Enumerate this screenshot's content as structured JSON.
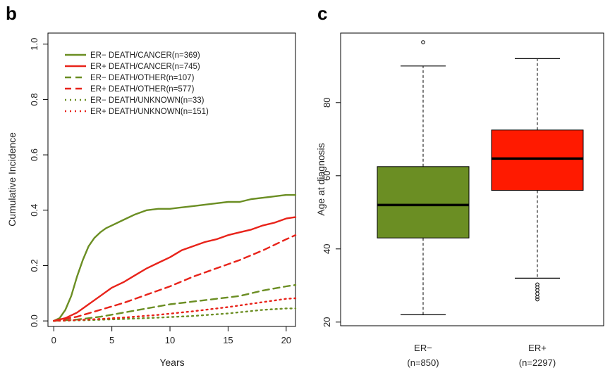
{
  "panels": {
    "left_letter": "b",
    "right_letter": "c"
  },
  "chart_data": [
    {
      "type": "line",
      "title": "",
      "xlabel": "Years",
      "ylabel": "Cumulative Incidence",
      "xlim": [
        -0.5,
        20.8
      ],
      "ylim": [
        -0.02,
        1.04
      ],
      "xticks": [
        "0",
        "5",
        "10",
        "15",
        "20"
      ],
      "yticks": [
        "0.0",
        "0.2",
        "0.4",
        "0.6",
        "0.8",
        "1.0"
      ],
      "legend_position": "top-left",
      "series": [
        {
          "name": "ER− DEATH/CANCER(n=369)",
          "color": "#6b8e23",
          "dash": "solid",
          "x": [
            0,
            0.5,
            1,
            1.5,
            2,
            2.5,
            3,
            3.5,
            4,
            4.5,
            5,
            6,
            7,
            8,
            9,
            10,
            11,
            12,
            13,
            14,
            15,
            16,
            17,
            18,
            19,
            20,
            20.8
          ],
          "y": [
            0,
            0.01,
            0.04,
            0.09,
            0.16,
            0.22,
            0.27,
            0.3,
            0.32,
            0.335,
            0.345,
            0.365,
            0.385,
            0.4,
            0.405,
            0.405,
            0.41,
            0.415,
            0.42,
            0.425,
            0.43,
            0.43,
            0.44,
            0.445,
            0.45,
            0.455,
            0.455
          ]
        },
        {
          "name": "ER+ DEATH/CANCER(n=745)",
          "color": "#e8231a",
          "dash": "solid",
          "x": [
            0,
            1,
            2,
            3,
            4,
            5,
            6,
            7,
            8,
            9,
            10,
            11,
            12,
            13,
            14,
            15,
            16,
            17,
            18,
            19,
            20,
            20.8
          ],
          "y": [
            0,
            0.01,
            0.03,
            0.06,
            0.09,
            0.12,
            0.14,
            0.165,
            0.19,
            0.21,
            0.23,
            0.255,
            0.27,
            0.285,
            0.295,
            0.31,
            0.32,
            0.33,
            0.345,
            0.355,
            0.37,
            0.375
          ]
        },
        {
          "name": "ER− DEATH/OTHER(n=107)",
          "color": "#6b8e23",
          "dash": "dashed",
          "x": [
            0,
            2,
            4,
            6,
            8,
            10,
            12,
            14,
            16,
            18,
            20,
            20.8
          ],
          "y": [
            0,
            0.005,
            0.015,
            0.03,
            0.045,
            0.06,
            0.07,
            0.08,
            0.09,
            0.11,
            0.125,
            0.13
          ]
        },
        {
          "name": "ER+ DEATH/OTHER(n=577)",
          "color": "#e8231a",
          "dash": "dashed",
          "x": [
            0,
            2,
            4,
            6,
            8,
            10,
            12,
            14,
            16,
            18,
            20,
            20.8
          ],
          "y": [
            0,
            0.015,
            0.04,
            0.065,
            0.095,
            0.125,
            0.16,
            0.19,
            0.22,
            0.255,
            0.295,
            0.31
          ]
        },
        {
          "name": "ER− DEATH/UNKNOWN(n=33)",
          "color": "#6b8e23",
          "dash": "dotted",
          "x": [
            0,
            3,
            6,
            9,
            12,
            15,
            18,
            20,
            20.8
          ],
          "y": [
            0,
            0.003,
            0.007,
            0.012,
            0.018,
            0.027,
            0.04,
            0.045,
            0.045
          ]
        },
        {
          "name": "ER+ DEATH/UNKNOWN(n=151)",
          "color": "#e8231a",
          "dash": "dotted",
          "x": [
            0,
            3,
            6,
            9,
            12,
            15,
            18,
            20,
            20.8
          ],
          "y": [
            0,
            0.005,
            0.012,
            0.022,
            0.035,
            0.05,
            0.068,
            0.08,
            0.082
          ]
        }
      ]
    },
    {
      "type": "box",
      "title": "",
      "xlabel": "",
      "ylabel": "Age at diagnosis",
      "ylim": [
        19,
        99
      ],
      "yticks": [
        "20",
        "40",
        "60",
        "80"
      ],
      "boxes": [
        {
          "label": "ER−",
          "sublabel": "(n=850)",
          "color": "#6b8e23",
          "whisker_low": 22,
          "q1": 43,
          "median": 52,
          "q3": 62.5,
          "whisker_high": 90,
          "outliers": [
            96.5
          ]
        },
        {
          "label": "ER+",
          "sublabel": "(n=2297)",
          "color": "#ff1a00",
          "whisker_low": 32,
          "q1": 56,
          "median": 64.7,
          "q3": 72.5,
          "whisker_high": 92,
          "outliers": [
            30.3,
            29.5,
            28.7,
            27.8,
            26.9,
            26.2
          ]
        }
      ]
    }
  ]
}
